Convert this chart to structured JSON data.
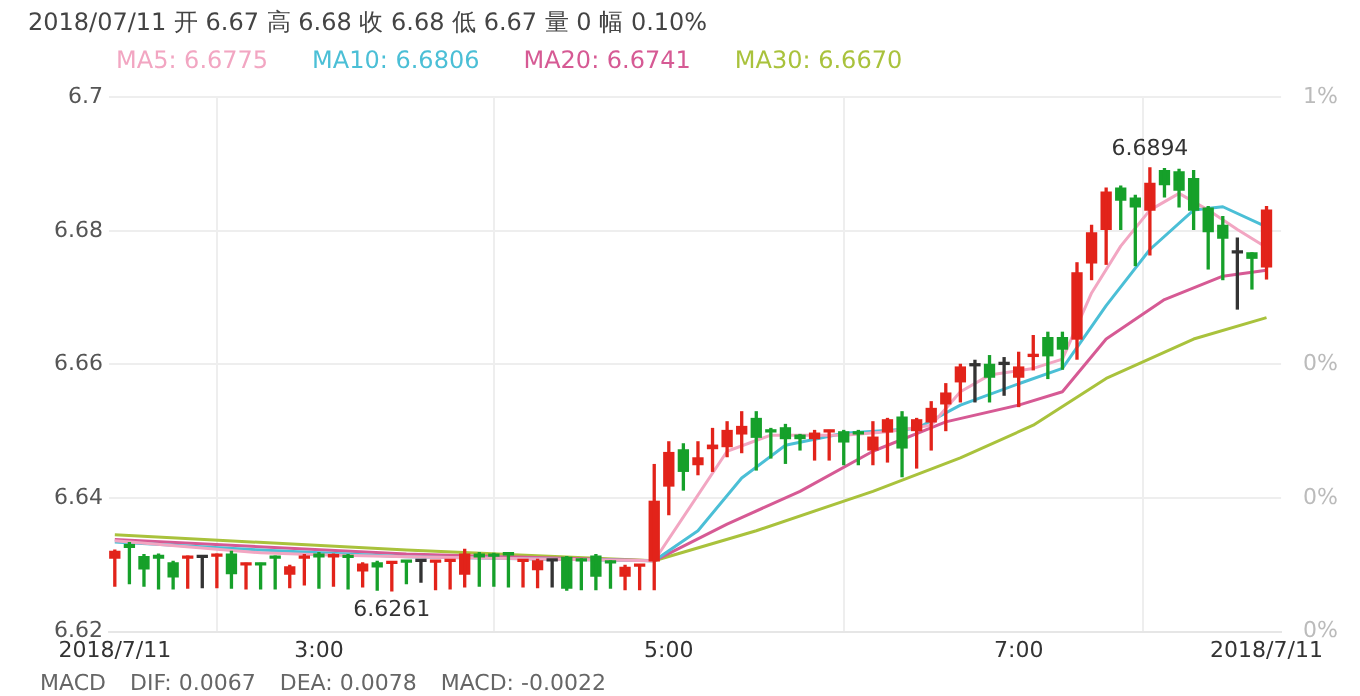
{
  "chart_data": {
    "type": "candlestick",
    "title": "2018/07/11  开 6.67  高 6.68  收 6.68  低 6.67  量 0  幅 0.10%",
    "x": [
      1.8333,
      1.9167,
      2,
      2.0833,
      2.1667,
      2.25,
      2.3333,
      2.4167,
      2.5,
      2.5833,
      2.6667,
      2.75,
      2.8333,
      2.9167,
      3,
      3.0833,
      3.1667,
      3.25,
      3.3333,
      3.4167,
      3.5,
      3.5833,
      3.6667,
      3.75,
      3.8333,
      3.9167,
      4,
      4.0833,
      4.1667,
      4.25,
      4.3333,
      4.4167,
      4.5,
      4.5833,
      4.6667,
      4.75,
      4.8333,
      4.9167,
      5,
      5.0833,
      5.1667,
      5.25,
      5.3333,
      5.4167,
      5.5,
      5.5833,
      5.6667,
      5.75,
      5.8333,
      5.9167,
      6,
      6.0833,
      6.1667,
      6.25,
      6.3333,
      6.4167,
      6.5,
      6.5833,
      6.6667,
      6.75,
      6.8333,
      6.9167,
      7,
      7.0833,
      7.1667,
      7.25,
      7.3333,
      7.4167,
      7.5,
      7.5833,
      7.6667,
      7.75,
      7.8333,
      7.9167,
      8,
      8.0833,
      8.1667,
      8.25,
      8.3333,
      8.4167
    ],
    "ohlc": [
      [
        6.631,
        6.6322,
        6.6268,
        6.632
      ],
      [
        6.633,
        6.6333,
        6.6272,
        6.6326
      ],
      [
        6.6312,
        6.6315,
        6.6268,
        6.6294
      ],
      [
        6.6314,
        6.6316,
        6.6264,
        6.631
      ],
      [
        6.6303,
        6.6305,
        6.6264,
        6.6282
      ],
      [
        6.631,
        6.6313,
        6.6265,
        6.6312
      ],
      [
        6.6311,
        6.6312,
        6.6266,
        6.6311
      ],
      [
        6.6313,
        6.6316,
        6.6266,
        6.6315
      ],
      [
        6.6316,
        6.632,
        6.6265,
        6.6287
      ],
      [
        6.63,
        6.6302,
        6.6264,
        6.6301
      ],
      [
        6.6301,
        6.6302,
        6.6264,
        6.63
      ],
      [
        6.6312,
        6.6313,
        6.6264,
        6.631
      ],
      [
        6.6286,
        6.6299,
        6.6266,
        6.6297
      ],
      [
        6.631,
        6.6315,
        6.627,
        6.6313
      ],
      [
        6.6316,
        6.6318,
        6.6265,
        6.6312
      ],
      [
        6.6312,
        6.6316,
        6.6268,
        6.6314
      ],
      [
        6.6314,
        6.6315,
        6.6264,
        6.6311
      ],
      [
        6.6291,
        6.6303,
        6.6267,
        6.6301
      ],
      [
        6.6303,
        6.6305,
        6.6262,
        6.6297
      ],
      [
        6.6302,
        6.6304,
        6.6261,
        6.6303
      ],
      [
        6.6305,
        6.6306,
        6.6272,
        6.6304
      ],
      [
        6.6305,
        6.6306,
        6.6274,
        6.6305
      ],
      [
        6.6304,
        6.6306,
        6.6263,
        6.6305
      ],
      [
        6.6305,
        6.6307,
        6.6264,
        6.6306
      ],
      [
        6.6286,
        6.6323,
        6.6267,
        6.6316
      ],
      [
        6.6316,
        6.6318,
        6.6268,
        6.6312
      ],
      [
        6.6315,
        6.6317,
        6.6268,
        6.6313
      ],
      [
        6.6317,
        6.6318,
        6.6267,
        6.6315
      ],
      [
        6.6305,
        6.6307,
        6.6267,
        6.6306
      ],
      [
        6.6293,
        6.6308,
        6.6266,
        6.6306
      ],
      [
        6.6306,
        6.6307,
        6.6267,
        6.6306
      ],
      [
        6.6311,
        6.6312,
        6.6262,
        6.6265
      ],
      [
        6.6307,
        6.6309,
        6.6263,
        6.6306
      ],
      [
        6.6313,
        6.6315,
        6.6263,
        6.6283
      ],
      [
        6.6304,
        6.6306,
        6.6265,
        6.6303
      ],
      [
        6.6283,
        6.6299,
        6.6263,
        6.6296
      ],
      [
        6.6298,
        6.63,
        6.6263,
        6.6299
      ],
      [
        6.6306,
        6.645,
        6.6263,
        6.6395
      ],
      [
        6.6418,
        6.6484,
        6.6375,
        6.6468
      ],
      [
        6.6472,
        6.6481,
        6.6412,
        6.644
      ],
      [
        6.645,
        6.6484,
        6.6435,
        6.646
      ],
      [
        6.6474,
        6.6504,
        6.644,
        6.6479
      ],
      [
        6.6477,
        6.6514,
        6.6462,
        6.6501
      ],
      [
        6.6496,
        6.6529,
        6.6468,
        6.6507
      ],
      [
        6.6519,
        6.6529,
        6.6442,
        6.6491
      ],
      [
        6.65,
        6.6504,
        6.646,
        6.6499
      ],
      [
        6.6505,
        6.651,
        6.6452,
        6.6489
      ],
      [
        6.6494,
        6.6495,
        6.6472,
        6.6489
      ],
      [
        6.6489,
        6.6501,
        6.6457,
        6.6497
      ],
      [
        6.6499,
        6.6501,
        6.6457,
        6.65
      ],
      [
        6.6499,
        6.6501,
        6.645,
        6.6484
      ],
      [
        6.6497,
        6.6501,
        6.645,
        6.6496
      ],
      [
        6.6472,
        6.6514,
        6.645,
        6.6491
      ],
      [
        6.6499,
        6.6519,
        6.6454,
        6.6517
      ],
      [
        6.6521,
        6.6529,
        6.6432,
        6.6475
      ],
      [
        6.6501,
        6.6519,
        6.6445,
        6.6517
      ],
      [
        6.6514,
        6.6544,
        6.6472,
        6.6534
      ],
      [
        6.6541,
        6.6571,
        6.6501,
        6.6557
      ],
      [
        6.6574,
        6.66,
        6.6544,
        6.6596
      ],
      [
        6.6598,
        6.6606,
        6.6544,
        6.6598
      ],
      [
        6.66,
        6.6613,
        6.6544,
        6.6581
      ],
      [
        6.66,
        6.661,
        6.6554,
        6.66
      ],
      [
        6.6581,
        6.6618,
        6.6537,
        6.6596
      ],
      [
        6.6612,
        6.6643,
        6.6592,
        6.6613
      ],
      [
        6.664,
        6.6648,
        6.6579,
        6.6613
      ],
      [
        6.664,
        6.6648,
        6.6593,
        6.6623
      ],
      [
        6.6638,
        6.6752,
        6.6608,
        6.6737
      ],
      [
        6.6752,
        6.6808,
        6.6727,
        6.6797
      ],
      [
        6.6802,
        6.6864,
        6.675,
        6.6858
      ],
      [
        6.6864,
        6.6867,
        6.6802,
        6.6846
      ],
      [
        6.6849,
        6.6853,
        6.6748,
        6.6836
      ],
      [
        6.6831,
        6.6894,
        6.6764,
        6.6871
      ],
      [
        6.689,
        6.6893,
        6.6851,
        6.6869
      ],
      [
        6.6888,
        6.6892,
        6.6836,
        6.6861
      ],
      [
        6.6878,
        6.689,
        6.6802,
        6.6831
      ],
      [
        6.6834,
        6.6836,
        6.6743,
        6.6799
      ],
      [
        6.6808,
        6.6821,
        6.6727,
        6.6789
      ],
      [
        6.6767,
        6.6789,
        6.6683,
        6.6767
      ],
      [
        6.6767,
        6.6767,
        6.6713,
        6.6759
      ],
      [
        6.6746,
        6.6836,
        6.6728,
        6.6831
      ]
    ],
    "colors": [
      "#e2231a",
      "#16a02a",
      "#16a02a",
      "#16a02a",
      "#16a02a",
      "#e2231a",
      "#333333",
      "#e2231a",
      "#16a02a",
      "#e2231a",
      "#16a02a",
      "#16a02a",
      "#e2231a",
      "#e2231a",
      "#16a02a",
      "#e2231a",
      "#16a02a",
      "#e2231a",
      "#16a02a",
      "#e2231a",
      "#16a02a",
      "#333333",
      "#e2231a",
      "#e2231a",
      "#e2231a",
      "#16a02a",
      "#16a02a",
      "#16a02a",
      "#e2231a",
      "#e2231a",
      "#333333",
      "#16a02a",
      "#16a02a",
      "#16a02a",
      "#16a02a",
      "#e2231a",
      "#e2231a",
      "#e2231a",
      "#e2231a",
      "#16a02a",
      "#e2231a",
      "#e2231a",
      "#e2231a",
      "#e2231a",
      "#16a02a",
      "#16a02a",
      "#16a02a",
      "#16a02a",
      "#e2231a",
      "#e2231a",
      "#16a02a",
      "#16a02a",
      "#e2231a",
      "#e2231a",
      "#16a02a",
      "#e2231a",
      "#e2231a",
      "#e2231a",
      "#e2231a",
      "#333333",
      "#16a02a",
      "#333333",
      "#e2231a",
      "#e2231a",
      "#16a02a",
      "#16a02a",
      "#e2231a",
      "#e2231a",
      "#e2231a",
      "#16a02a",
      "#16a02a",
      "#e2231a",
      "#16a02a",
      "#16a02a",
      "#16a02a",
      "#16a02a",
      "#16a02a",
      "#333333",
      "#16a02a",
      "#e2231a"
    ],
    "series": [
      {
        "type": "line",
        "name": "MA5: 6.6775",
        "color": "#f2a6c2",
        "x": [
          1.8333,
          2.6667,
          3,
          3.5,
          4.9167,
          5.3333,
          5.5833,
          6,
          6.25,
          6.5,
          6.6667,
          6.8333,
          7.0833,
          7.25,
          7.4167,
          7.5833,
          7.75,
          7.9167,
          8.0833,
          8.25,
          8.4167
        ],
        "values": [
          6.6336,
          6.6318,
          6.6315,
          6.6312,
          6.6306,
          6.647,
          6.6494,
          6.6494,
          6.6499,
          6.6509,
          6.6559,
          6.6584,
          6.6594,
          6.6608,
          6.6707,
          6.6777,
          6.6831,
          6.6856,
          6.6831,
          6.6802,
          6.6775
        ]
      },
      {
        "type": "line",
        "name": "MA10: 6.6806",
        "color": "#4bbfd6",
        "x": [
          1.8333,
          2.6667,
          3.5,
          4.9167,
          5.1667,
          5.4167,
          5.6667,
          6,
          6.4167,
          6.6667,
          7,
          7.25,
          7.5,
          7.75,
          8,
          8.1667,
          8.4167
        ],
        "values": [
          6.6334,
          6.6322,
          6.6312,
          6.6306,
          6.6351,
          6.643,
          6.6479,
          6.6497,
          6.6504,
          6.6539,
          6.6571,
          6.6594,
          6.6688,
          6.6772,
          6.6831,
          6.6836,
          6.6806
        ]
      },
      {
        "type": "line",
        "name": "MA20: 6.6741",
        "color": "#d65a94",
        "x": [
          1.8333,
          3.5,
          4.9167,
          5.3333,
          5.75,
          6.1667,
          6.5833,
          7,
          7.25,
          7.5,
          7.8333,
          8.1667,
          8.4167
        ],
        "values": [
          6.6338,
          6.6316,
          6.6306,
          6.6361,
          6.641,
          6.647,
          6.6514,
          6.6539,
          6.6559,
          6.6638,
          6.6697,
          6.6732,
          6.6741
        ]
      },
      {
        "type": "line",
        "name": "MA30: 6.6670",
        "color": "#a9c23c",
        "x": [
          1.8333,
          3.5,
          4.9167,
          5.5,
          6.1667,
          6.6667,
          7.0833,
          7.5,
          8,
          8.4167
        ],
        "values": [
          6.6345,
          6.6322,
          6.6306,
          6.6351,
          6.641,
          6.646,
          6.6509,
          6.6579,
          6.6638,
          6.667
        ]
      }
    ],
    "annotations": [
      {
        "text": "6.6261",
        "x": 3.4167,
        "y": 6.6261
      },
      {
        "text": "6.6894",
        "x": 7.75,
        "y": 6.6894
      },
      "MACD",
      "DIF: 0.0067",
      "DEA: 0.0078",
      "MACD: -0.0022"
    ],
    "xlim": [
      1.8,
      8.5
    ],
    "xticks": [
      {
        "value": 1.8333,
        "label": "2018/7/11"
      },
      {
        "value": 3,
        "label": "3:00"
      },
      {
        "value": 5,
        "label": "5:00"
      },
      {
        "value": 7,
        "label": "7:00"
      },
      {
        "value": 8.4167,
        "label": "2018/7/11"
      }
    ],
    "ylim": [
      6.62,
      6.7
    ],
    "yticks": [
      6.62,
      6.64,
      6.66,
      6.68,
      6.7
    ],
    "y2lim": [
      -0.2,
      1.0
    ],
    "y2ticks": [
      {
        "value": -0.2,
        "label": "0%"
      },
      {
        "value": 0.1,
        "label": "0%"
      },
      {
        "value": 0.4,
        "label": "0%"
      },
      {
        "value": 1.0,
        "label": "1%"
      }
    ],
    "grid": true,
    "legend": "top left",
    "marker": "none",
    "line_style": "solid"
  }
}
